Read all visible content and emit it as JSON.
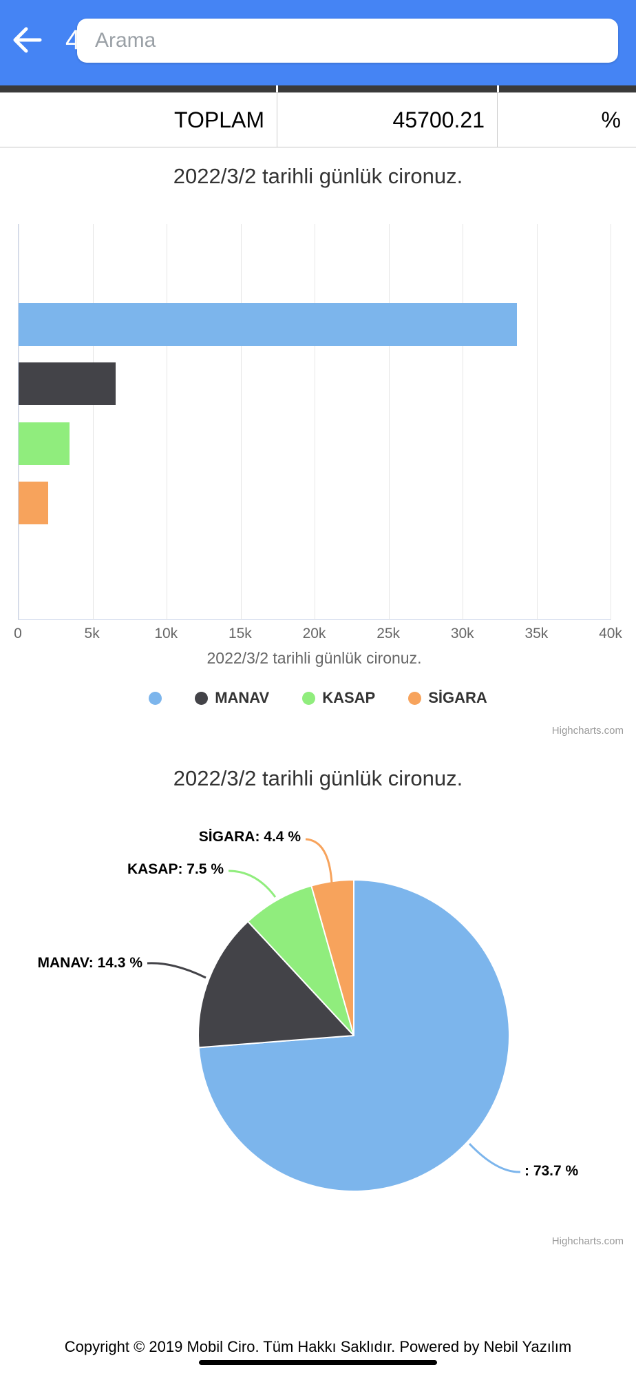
{
  "header": {
    "title_partial": "4",
    "search_placeholder": "Arama"
  },
  "summary_row": {
    "cells": [
      "TOPLAM",
      "45700.21",
      "%"
    ]
  },
  "chart_data": [
    {
      "type": "bar",
      "orientation": "horizontal",
      "title": "2022/3/2 tarihli günlük cironuz.",
      "xlabel": "2022/3/2 tarihli günlük cironuz.",
      "series": [
        {
          "name": "",
          "value": 33681,
          "color": "#7cb5ec"
        },
        {
          "name": "MANAV",
          "value": 6535,
          "color": "#434348"
        },
        {
          "name": "KASAP",
          "value": 3428,
          "color": "#90ed7d"
        },
        {
          "name": "SİGARA",
          "value": 2011,
          "color": "#f7a35c"
        }
      ],
      "xlim": [
        0,
        40000
      ],
      "xticks": [
        "0",
        "5k",
        "10k",
        "15k",
        "20k",
        "25k",
        "30k",
        "35k",
        "40k"
      ],
      "grid": true,
      "legend_position": "bottom",
      "credits": "Highcharts.com"
    },
    {
      "type": "pie",
      "title": "2022/3/2 tarihli günlük cironuz.",
      "start_angle": 0,
      "slices": [
        {
          "name": "",
          "percent": 73.7,
          "color": "#7cb5ec",
          "label": ": 73.7 %"
        },
        {
          "name": "MANAV",
          "percent": 14.3,
          "color": "#434348",
          "label": "MANAV: 14.3 %"
        },
        {
          "name": "KASAP",
          "percent": 7.5,
          "color": "#90ed7d",
          "label": "KASAP: 7.5 %"
        },
        {
          "name": "SİGARA",
          "percent": 4.4,
          "color": "#f7a35c",
          "label": "SİGARA: 4.4 %"
        }
      ],
      "credits": "Highcharts.com"
    }
  ],
  "footer": {
    "copyright": "Copyright © 2019 Mobil Ciro. Tüm Hakkı Saklıdır. Powered by Nebil Yazılım"
  }
}
